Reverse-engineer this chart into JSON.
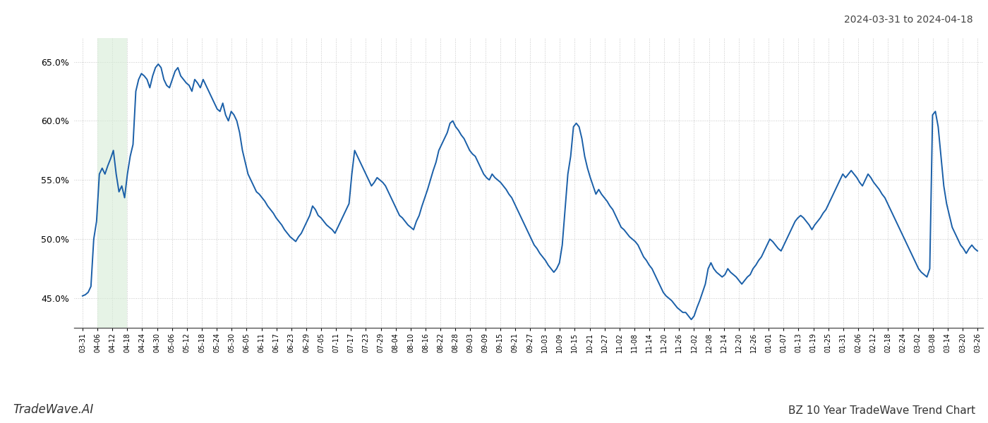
{
  "title_top_right": "2024-03-31 to 2024-04-18",
  "bottom_left": "TradeWave.AI",
  "bottom_right": "BZ 10 Year TradeWave Trend Chart",
  "line_color": "#1a5fa8",
  "line_width": 1.4,
  "bg_color": "#ffffff",
  "grid_color": "#c8c8c8",
  "grid_style": "dotted",
  "highlight_color": "#d6ecd6",
  "highlight_alpha": 0.6,
  "ylim": [
    42.5,
    67.0
  ],
  "yticks": [
    45.0,
    50.0,
    55.0,
    60.0,
    65.0
  ],
  "x_labels": [
    "03-31",
    "04-06",
    "04-12",
    "04-18",
    "04-24",
    "04-30",
    "05-06",
    "05-12",
    "05-18",
    "05-24",
    "05-30",
    "06-05",
    "06-11",
    "06-17",
    "06-23",
    "06-29",
    "07-05",
    "07-11",
    "07-17",
    "07-23",
    "07-29",
    "08-04",
    "08-10",
    "08-16",
    "08-22",
    "08-28",
    "09-03",
    "09-09",
    "09-15",
    "09-21",
    "09-27",
    "10-03",
    "10-09",
    "10-15",
    "10-21",
    "10-27",
    "11-02",
    "11-08",
    "11-14",
    "11-20",
    "11-26",
    "12-02",
    "12-08",
    "12-14",
    "12-20",
    "12-26",
    "01-01",
    "01-07",
    "01-13",
    "01-19",
    "01-25",
    "01-31",
    "02-06",
    "02-12",
    "02-18",
    "02-24",
    "03-02",
    "03-08",
    "03-14",
    "03-20",
    "03-26"
  ],
  "highlight_label_start": "04-06",
  "highlight_label_end": "04-18",
  "values": [
    45.2,
    45.3,
    45.5,
    46.0,
    50.0,
    51.5,
    55.5,
    56.0,
    55.5,
    56.2,
    56.8,
    57.5,
    55.5,
    54.0,
    54.5,
    53.5,
    55.5,
    57.0,
    58.0,
    62.5,
    63.5,
    64.0,
    63.8,
    63.5,
    62.8,
    63.8,
    64.5,
    64.8,
    64.5,
    63.5,
    63.0,
    62.8,
    63.5,
    64.2,
    64.5,
    63.8,
    63.5,
    63.2,
    63.0,
    62.5,
    63.5,
    63.2,
    62.8,
    63.5,
    63.0,
    62.5,
    62.0,
    61.5,
    61.0,
    60.8,
    61.5,
    60.5,
    60.0,
    60.8,
    60.5,
    60.0,
    59.0,
    57.5,
    56.5,
    55.5,
    55.0,
    54.5,
    54.0,
    53.8,
    53.5,
    53.2,
    52.8,
    52.5,
    52.2,
    51.8,
    51.5,
    51.2,
    50.8,
    50.5,
    50.2,
    50.0,
    49.8,
    50.2,
    50.5,
    51.0,
    51.5,
    52.0,
    52.8,
    52.5,
    52.0,
    51.8,
    51.5,
    51.2,
    51.0,
    50.8,
    50.5,
    51.0,
    51.5,
    52.0,
    52.5,
    53.0,
    55.5,
    57.5,
    57.0,
    56.5,
    56.0,
    55.5,
    55.0,
    54.5,
    54.8,
    55.2,
    55.0,
    54.8,
    54.5,
    54.0,
    53.5,
    53.0,
    52.5,
    52.0,
    51.8,
    51.5,
    51.2,
    51.0,
    50.8,
    51.5,
    52.0,
    52.8,
    53.5,
    54.2,
    55.0,
    55.8,
    56.5,
    57.5,
    58.0,
    58.5,
    59.0,
    59.8,
    60.0,
    59.5,
    59.2,
    58.8,
    58.5,
    58.0,
    57.5,
    57.2,
    57.0,
    56.5,
    56.0,
    55.5,
    55.2,
    55.0,
    55.5,
    55.2,
    55.0,
    54.8,
    54.5,
    54.2,
    53.8,
    53.5,
    53.0,
    52.5,
    52.0,
    51.5,
    51.0,
    50.5,
    50.0,
    49.5,
    49.2,
    48.8,
    48.5,
    48.2,
    47.8,
    47.5,
    47.2,
    47.5,
    48.0,
    49.5,
    52.5,
    55.5,
    57.0,
    59.5,
    59.8,
    59.5,
    58.5,
    57.0,
    56.0,
    55.2,
    54.5,
    53.8,
    54.2,
    53.8,
    53.5,
    53.2,
    52.8,
    52.5,
    52.0,
    51.5,
    51.0,
    50.8,
    50.5,
    50.2,
    50.0,
    49.8,
    49.5,
    49.0,
    48.5,
    48.2,
    47.8,
    47.5,
    47.0,
    46.5,
    46.0,
    45.5,
    45.2,
    45.0,
    44.8,
    44.5,
    44.2,
    44.0,
    43.8,
    43.8,
    43.5,
    43.2,
    43.5,
    44.2,
    44.8,
    45.5,
    46.2,
    47.5,
    48.0,
    47.5,
    47.2,
    47.0,
    46.8,
    47.0,
    47.5,
    47.2,
    47.0,
    46.8,
    46.5,
    46.2,
    46.5,
    46.8,
    47.0,
    47.5,
    47.8,
    48.2,
    48.5,
    49.0,
    49.5,
    50.0,
    49.8,
    49.5,
    49.2,
    49.0,
    49.5,
    50.0,
    50.5,
    51.0,
    51.5,
    51.8,
    52.0,
    51.8,
    51.5,
    51.2,
    50.8,
    51.2,
    51.5,
    51.8,
    52.2,
    52.5,
    53.0,
    53.5,
    54.0,
    54.5,
    55.0,
    55.5,
    55.2,
    55.5,
    55.8,
    55.5,
    55.2,
    54.8,
    54.5,
    55.0,
    55.5,
    55.2,
    54.8,
    54.5,
    54.2,
    53.8,
    53.5,
    53.0,
    52.5,
    52.0,
    51.5,
    51.0,
    50.5,
    50.0,
    49.5,
    49.0,
    48.5,
    48.0,
    47.5,
    47.2,
    47.0,
    46.8,
    47.5,
    60.5,
    60.8,
    59.5,
    57.0,
    54.5,
    53.0,
    52.0,
    51.0,
    50.5,
    50.0,
    49.5,
    49.2,
    48.8,
    49.2,
    49.5,
    49.2,
    49.0
  ]
}
